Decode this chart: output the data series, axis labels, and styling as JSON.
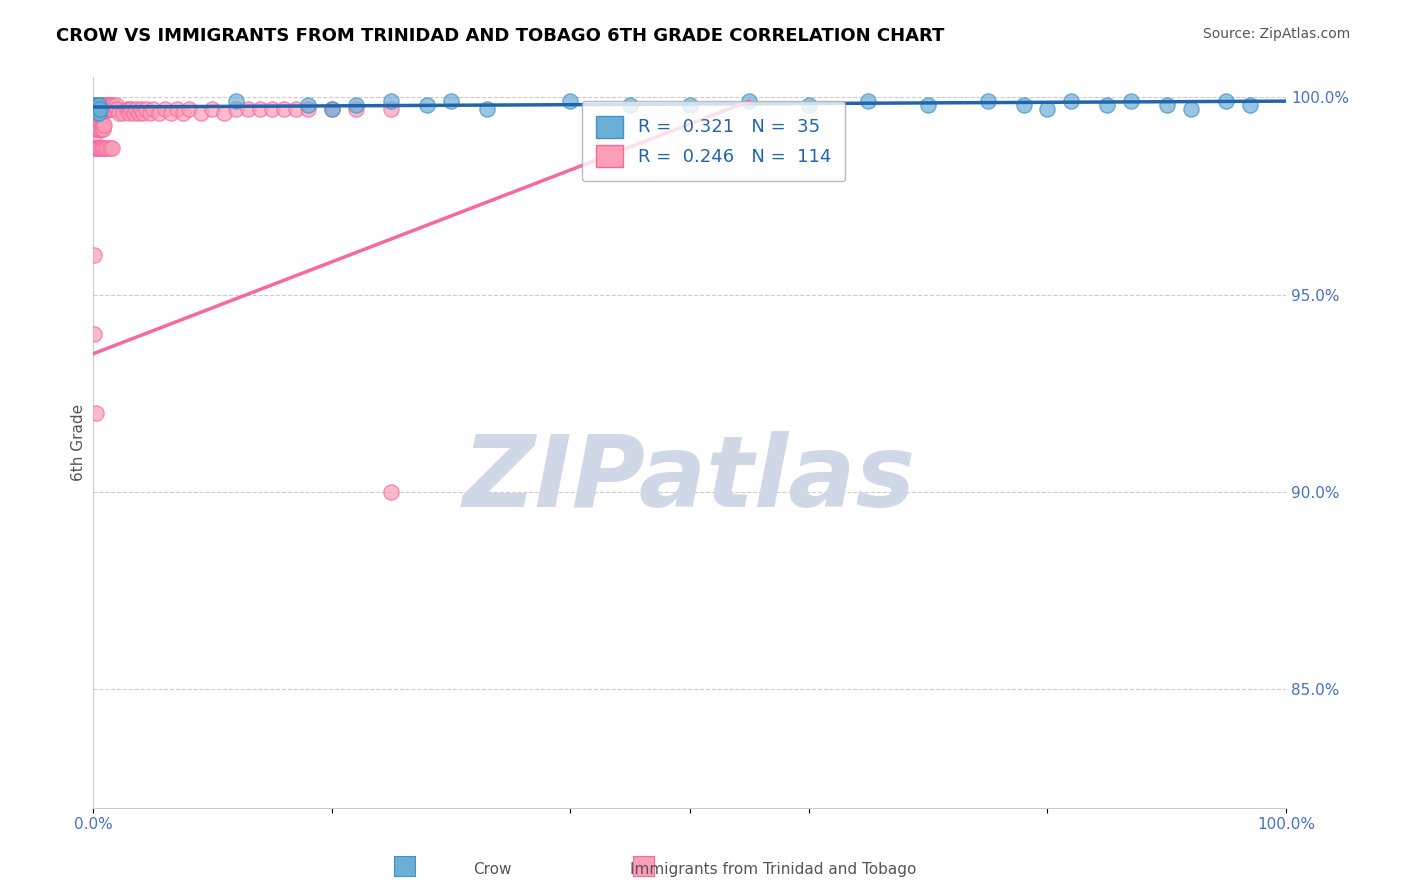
{
  "title": "CROW VS IMMIGRANTS FROM TRINIDAD AND TOBAGO 6TH GRADE CORRELATION CHART",
  "source": "Source: ZipAtlas.com",
  "xlabel": "",
  "ylabel": "6th Grade",
  "right_yticks": [
    1.0,
    0.95,
    0.9,
    0.85
  ],
  "right_yticklabels": [
    "100.0%",
    "95.0%",
    "90.0%",
    "85.0%"
  ],
  "xticks": [
    0.0,
    0.2,
    0.4,
    0.6,
    0.8,
    1.0
  ],
  "xticklabels": [
    "0.0%",
    "",
    "",
    "",
    "",
    "100.0%"
  ],
  "xlim": [
    0.0,
    1.0
  ],
  "ylim": [
    0.82,
    1.005
  ],
  "crow_color": "#6baed6",
  "crow_edge": "#4292c6",
  "imm_color": "#fa9fb5",
  "imm_edge": "#f768a1",
  "R_crow": 0.321,
  "N_crow": 35,
  "R_imm": 0.246,
  "N_imm": 114,
  "legend_text_crow": "R =  0.321   N =  35",
  "legend_text_imm": "R =  0.246   N =  114",
  "crow_x": [
    0.001,
    0.002,
    0.002,
    0.003,
    0.003,
    0.004,
    0.004,
    0.005,
    0.005,
    0.006,
    0.12,
    0.18,
    0.2,
    0.22,
    0.25,
    0.28,
    0.3,
    0.33,
    0.4,
    0.45,
    0.5,
    0.55,
    0.6,
    0.65,
    0.7,
    0.75,
    0.78,
    0.8,
    0.82,
    0.85,
    0.87,
    0.9,
    0.92,
    0.95,
    0.97
  ],
  "crow_y": [
    0.998,
    0.998,
    0.997,
    0.997,
    0.998,
    0.996,
    0.997,
    0.998,
    0.996,
    0.997,
    0.999,
    0.998,
    0.997,
    0.998,
    0.999,
    0.998,
    0.999,
    0.997,
    0.999,
    0.998,
    0.998,
    0.999,
    0.998,
    0.999,
    0.998,
    0.999,
    0.998,
    0.997,
    0.999,
    0.998,
    0.999,
    0.998,
    0.997,
    0.999,
    0.998
  ],
  "imm_x_cluster": [
    0.001,
    0.001,
    0.001,
    0.002,
    0.002,
    0.002,
    0.002,
    0.003,
    0.003,
    0.003,
    0.003,
    0.004,
    0.004,
    0.004,
    0.004,
    0.004,
    0.005,
    0.005,
    0.005,
    0.005,
    0.006,
    0.006,
    0.006,
    0.007,
    0.007,
    0.007,
    0.008,
    0.008,
    0.008,
    0.009,
    0.009,
    0.01,
    0.01,
    0.011,
    0.011,
    0.012,
    0.012,
    0.013,
    0.013,
    0.014,
    0.015,
    0.015,
    0.016,
    0.017,
    0.018,
    0.019,
    0.02,
    0.022,
    0.025,
    0.028,
    0.03,
    0.03,
    0.032,
    0.034,
    0.036,
    0.038,
    0.04,
    0.042,
    0.044,
    0.048,
    0.05,
    0.055,
    0.06,
    0.065,
    0.07,
    0.075,
    0.08,
    0.09,
    0.1,
    0.11,
    0.12,
    0.13,
    0.14,
    0.15,
    0.16,
    0.17,
    0.18,
    0.2,
    0.22,
    0.25,
    0.001,
    0.001,
    0.002,
    0.002,
    0.002,
    0.003,
    0.003,
    0.004,
    0.004,
    0.005,
    0.005,
    0.006,
    0.006,
    0.007,
    0.007,
    0.008,
    0.008,
    0.009,
    0.001,
    0.002,
    0.003,
    0.004,
    0.005,
    0.006,
    0.007,
    0.008,
    0.01,
    0.012,
    0.014,
    0.016,
    0.001,
    0.001,
    0.002,
    0.25
  ],
  "imm_y_cluster": [
    0.998,
    0.997,
    0.996,
    0.998,
    0.997,
    0.996,
    0.995,
    0.998,
    0.997,
    0.996,
    0.995,
    0.998,
    0.997,
    0.996,
    0.995,
    0.994,
    0.998,
    0.997,
    0.996,
    0.995,
    0.998,
    0.997,
    0.996,
    0.998,
    0.997,
    0.996,
    0.998,
    0.997,
    0.996,
    0.998,
    0.997,
    0.998,
    0.997,
    0.998,
    0.997,
    0.998,
    0.997,
    0.998,
    0.997,
    0.998,
    0.997,
    0.998,
    0.997,
    0.998,
    0.997,
    0.998,
    0.997,
    0.996,
    0.996,
    0.997,
    0.997,
    0.996,
    0.997,
    0.996,
    0.997,
    0.996,
    0.997,
    0.996,
    0.997,
    0.996,
    0.997,
    0.996,
    0.997,
    0.996,
    0.997,
    0.996,
    0.997,
    0.996,
    0.997,
    0.996,
    0.997,
    0.997,
    0.997,
    0.997,
    0.997,
    0.997,
    0.997,
    0.997,
    0.997,
    0.997,
    0.993,
    0.992,
    0.993,
    0.992,
    0.991,
    0.993,
    0.992,
    0.993,
    0.992,
    0.993,
    0.992,
    0.993,
    0.992,
    0.993,
    0.992,
    0.993,
    0.992,
    0.993,
    0.987,
    0.987,
    0.987,
    0.987,
    0.987,
    0.987,
    0.987,
    0.987,
    0.987,
    0.987,
    0.987,
    0.987,
    0.96,
    0.94,
    0.92,
    0.9
  ],
  "watermark": "ZIPatlas",
  "watermark_color": "#d0d8e8",
  "background_color": "#ffffff",
  "grid_color": "#cccccc",
  "title_color": "#000000",
  "axis_label_color": "#4472c4",
  "tick_color": "#4472c4"
}
